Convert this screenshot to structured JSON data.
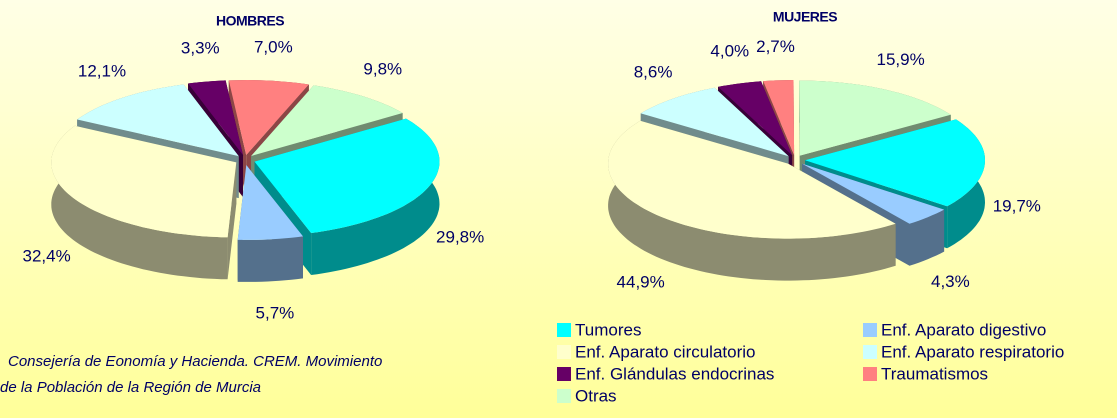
{
  "chart_data": [
    {
      "type": "pie",
      "title": "HOMBRES",
      "categories": [
        "Tumores",
        "Enf.  Aparato digestivo",
        "Enf. Aparato circulatorio",
        "Enf. Aparato respiratorio",
        "Enf. Glándulas endocrinas",
        "Traumatismos",
        "Otras"
      ],
      "values": [
        29.8,
        5.7,
        32.4,
        12.1,
        3.3,
        7.0,
        9.8
      ],
      "value_labels": [
        "29,8%",
        "5,7%",
        "32,4%",
        "12,1%",
        "3,3%",
        "7,0%",
        "9,8%"
      ],
      "colors": [
        "#00ffff",
        "#99ccff",
        "#ffffcc",
        "#ccffff",
        "#660066",
        "#ff8080",
        "#ccffcc"
      ]
    },
    {
      "type": "pie",
      "title": "MUJERES",
      "categories": [
        "Tumores",
        "Enf.  Aparato digestivo",
        "Enf. Aparato circulatorio",
        "Enf. Aparato respiratorio",
        "Enf. Glándulas endocrinas",
        "Traumatismos",
        "Otras"
      ],
      "values": [
        19.7,
        4.3,
        44.9,
        8.6,
        4.0,
        2.7,
        15.9
      ],
      "value_labels": [
        "19,7%",
        "4,3%",
        "44,9%",
        "8,6%",
        "4,0%",
        "2,7%",
        "15,9%"
      ],
      "colors": [
        "#00ffff",
        "#99ccff",
        "#ffffcc",
        "#ccffff",
        "#660066",
        "#ff8080",
        "#ccffcc"
      ]
    }
  ],
  "source": [
    "Consejería de Eonomía y Hacienda. CREM. Movimiento",
    "de la Población de la Región de Murcia"
  ]
}
